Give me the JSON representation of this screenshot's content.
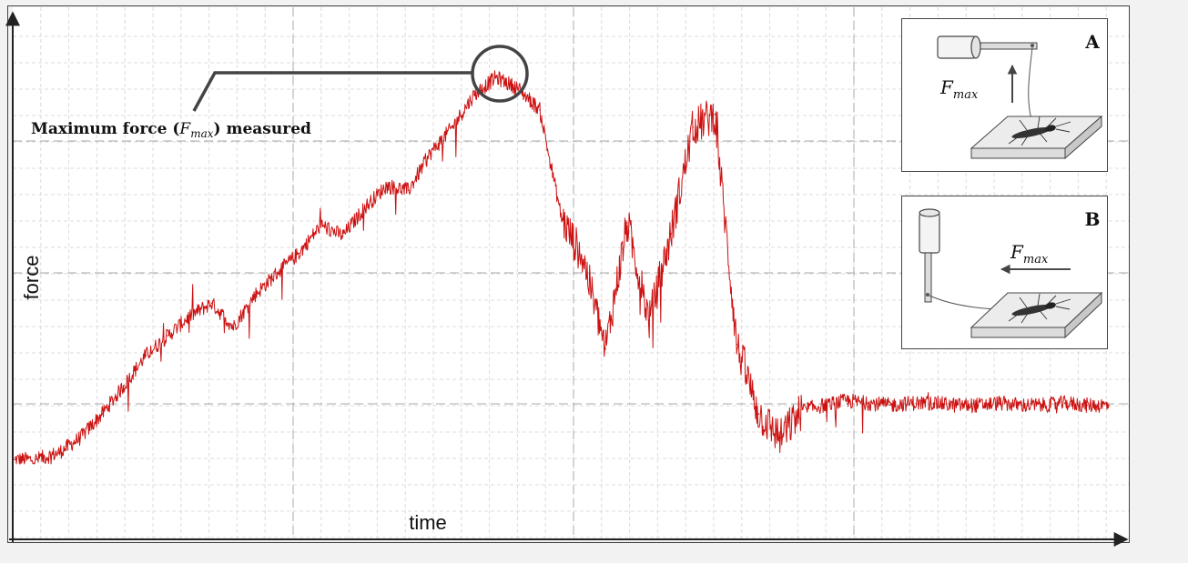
{
  "chart_data": {
    "type": "line",
    "title": "",
    "xlabel": "time",
    "ylabel": "force",
    "grid": true,
    "series": [
      {
        "color": "#cc1111",
        "x": [
          0,
          2,
          4,
          6,
          8,
          10,
          12,
          14,
          16,
          18,
          20,
          22,
          24,
          26,
          28,
          30,
          32,
          34,
          36,
          38,
          40,
          42,
          44,
          46,
          48,
          50,
          52,
          54,
          56,
          58,
          60,
          62,
          64,
          66,
          68,
          70,
          72,
          74,
          76,
          78,
          80,
          82,
          84,
          86,
          88,
          90,
          92,
          94,
          96,
          98,
          100
        ],
        "y": [
          0.2,
          0.2,
          0.5,
          1.2,
          2.3,
          3.6,
          5.0,
          5.9,
          6.8,
          7.4,
          6.3,
          7.8,
          8.8,
          9.7,
          11.0,
          10.5,
          11.8,
          12.8,
          12.6,
          14.3,
          15.5,
          17.0,
          17.8,
          17.3,
          16.3,
          11.3,
          9.4,
          5.3,
          11.1,
          6.6,
          10.6,
          15.5,
          16.1,
          5.5,
          2.3,
          1.2,
          2.5,
          2.7,
          2.9,
          2.8,
          2.7,
          2.8,
          2.8,
          2.7,
          2.7,
          2.8,
          2.7,
          2.7,
          2.8,
          2.7,
          2.7
        ]
      }
    ]
  },
  "annotation": {
    "text_before": "Maximum force (",
    "symbol_main": "F",
    "symbol_sub": "max",
    "text_after": ") measured"
  },
  "insets": [
    {
      "label": "A",
      "force_main": "F",
      "force_sub": "max",
      "arrow_direction": "up"
    },
    {
      "label": "B",
      "force_main": "F",
      "force_sub": "max",
      "arrow_direction": "left"
    }
  ]
}
